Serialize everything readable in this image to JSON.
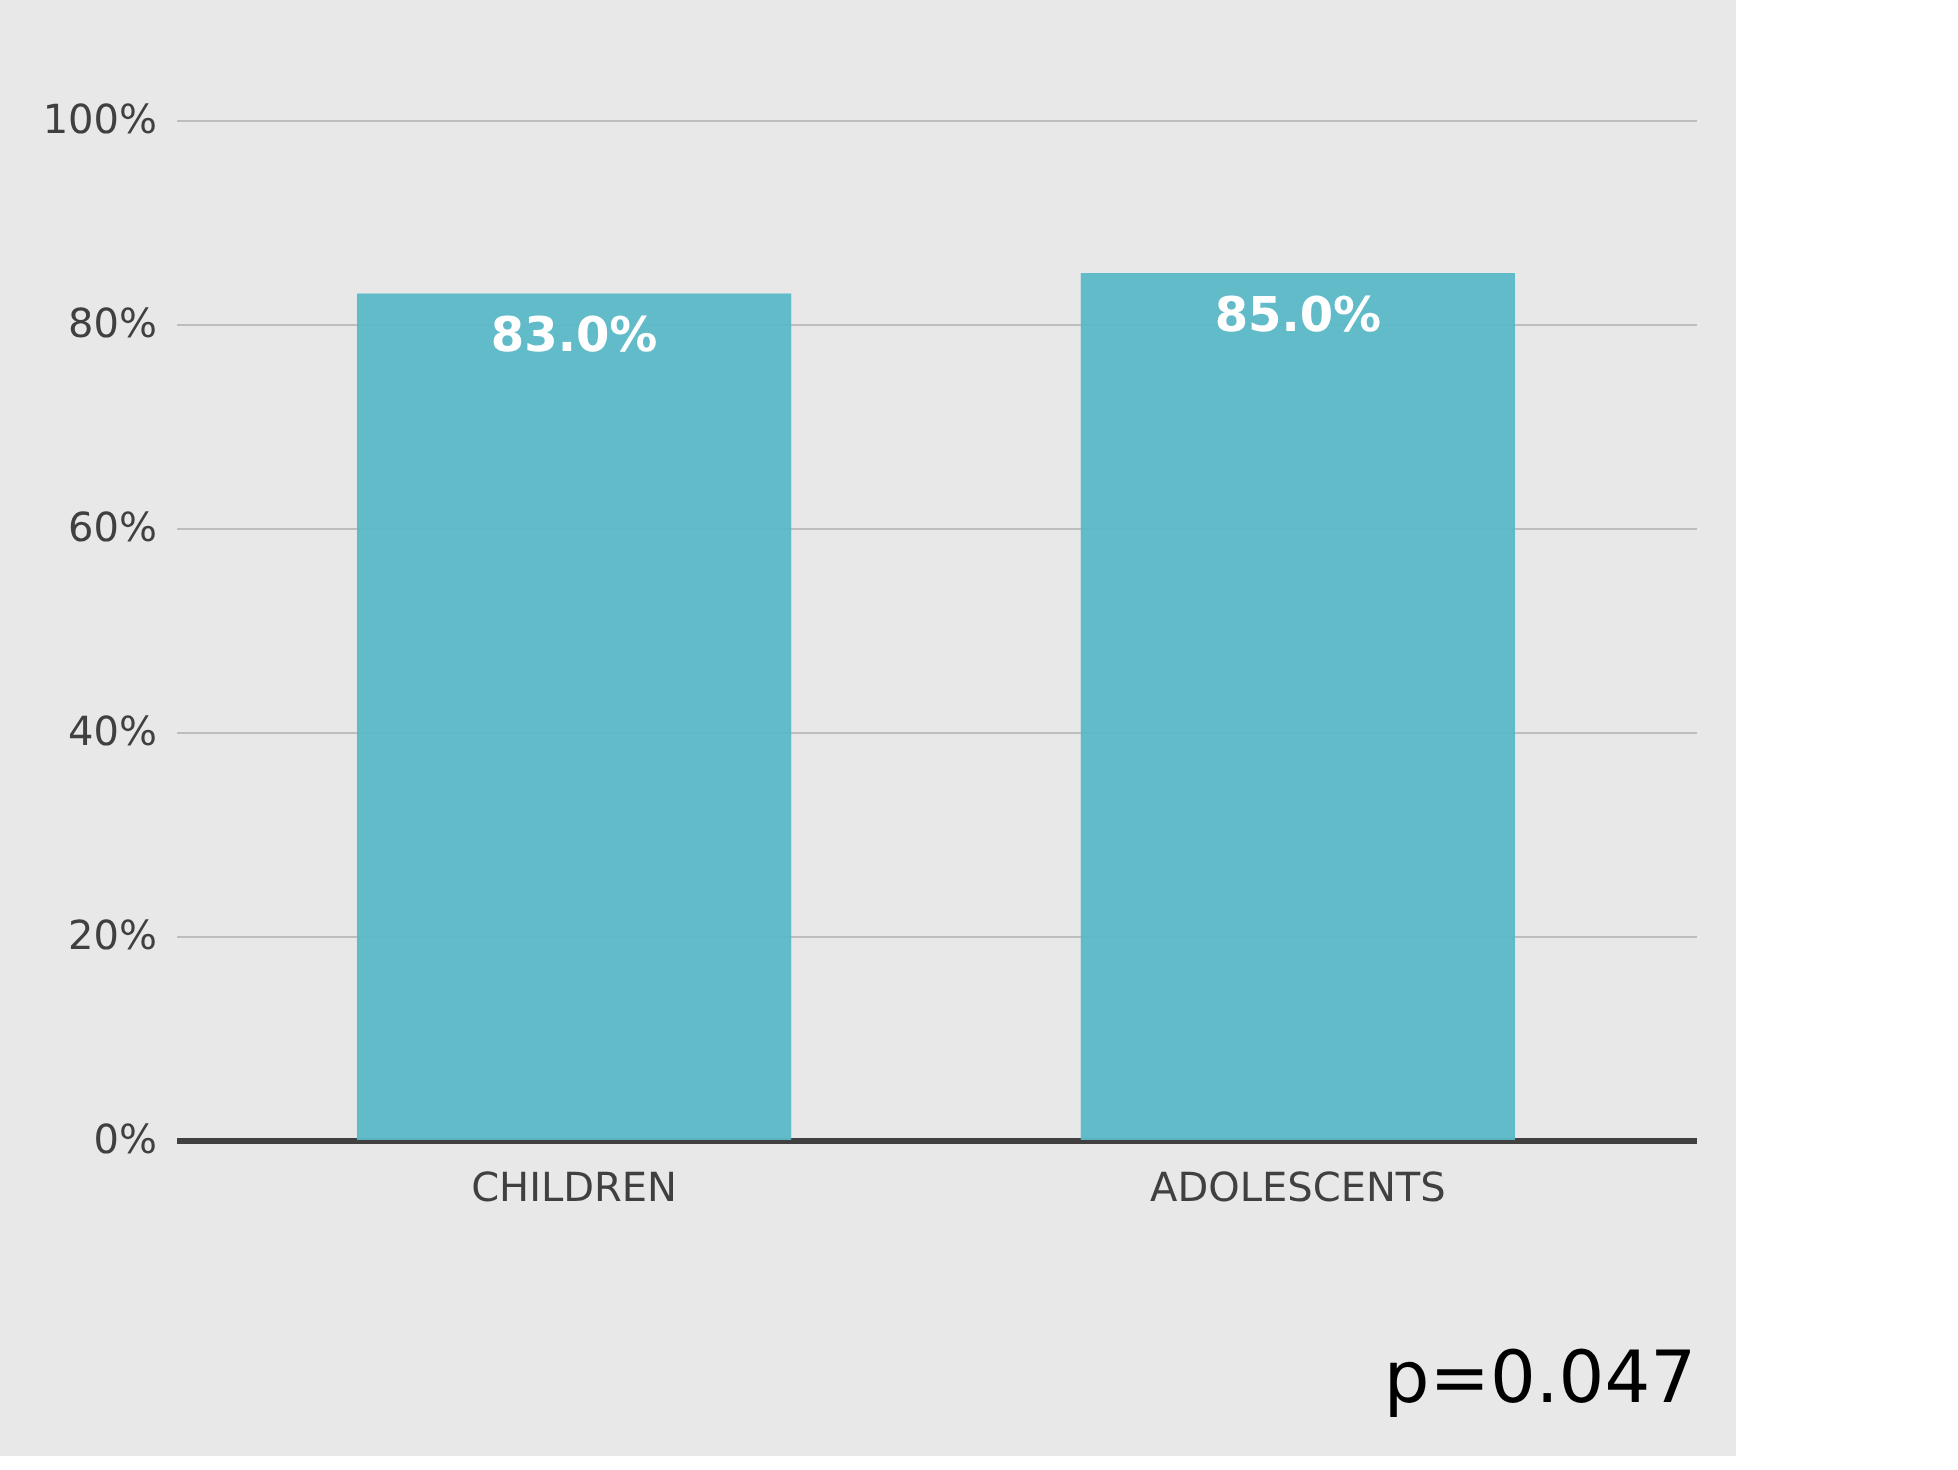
{
  "chart_data": {
    "type": "bar",
    "categories": [
      "CHILDREN",
      "ADOLESCENTS"
    ],
    "values": [
      83,
      85
    ],
    "color": "#5bb8c6",
    "value_labels": [
      "83.0%",
      "85.0%"
    ],
    "ylim": [
      0,
      100
    ],
    "yticks": [
      {
        "value": 0,
        "label": "0%"
      },
      {
        "value": 20,
        "label": "20%"
      },
      {
        "value": 40,
        "label": "40%"
      },
      {
        "value": 60,
        "label": "60%"
      },
      {
        "value": 80,
        "label": "80%"
      },
      {
        "value": 100,
        "label": "100%"
      }
    ],
    "grid": "y",
    "annotations": [
      "p=0.047"
    ]
  }
}
